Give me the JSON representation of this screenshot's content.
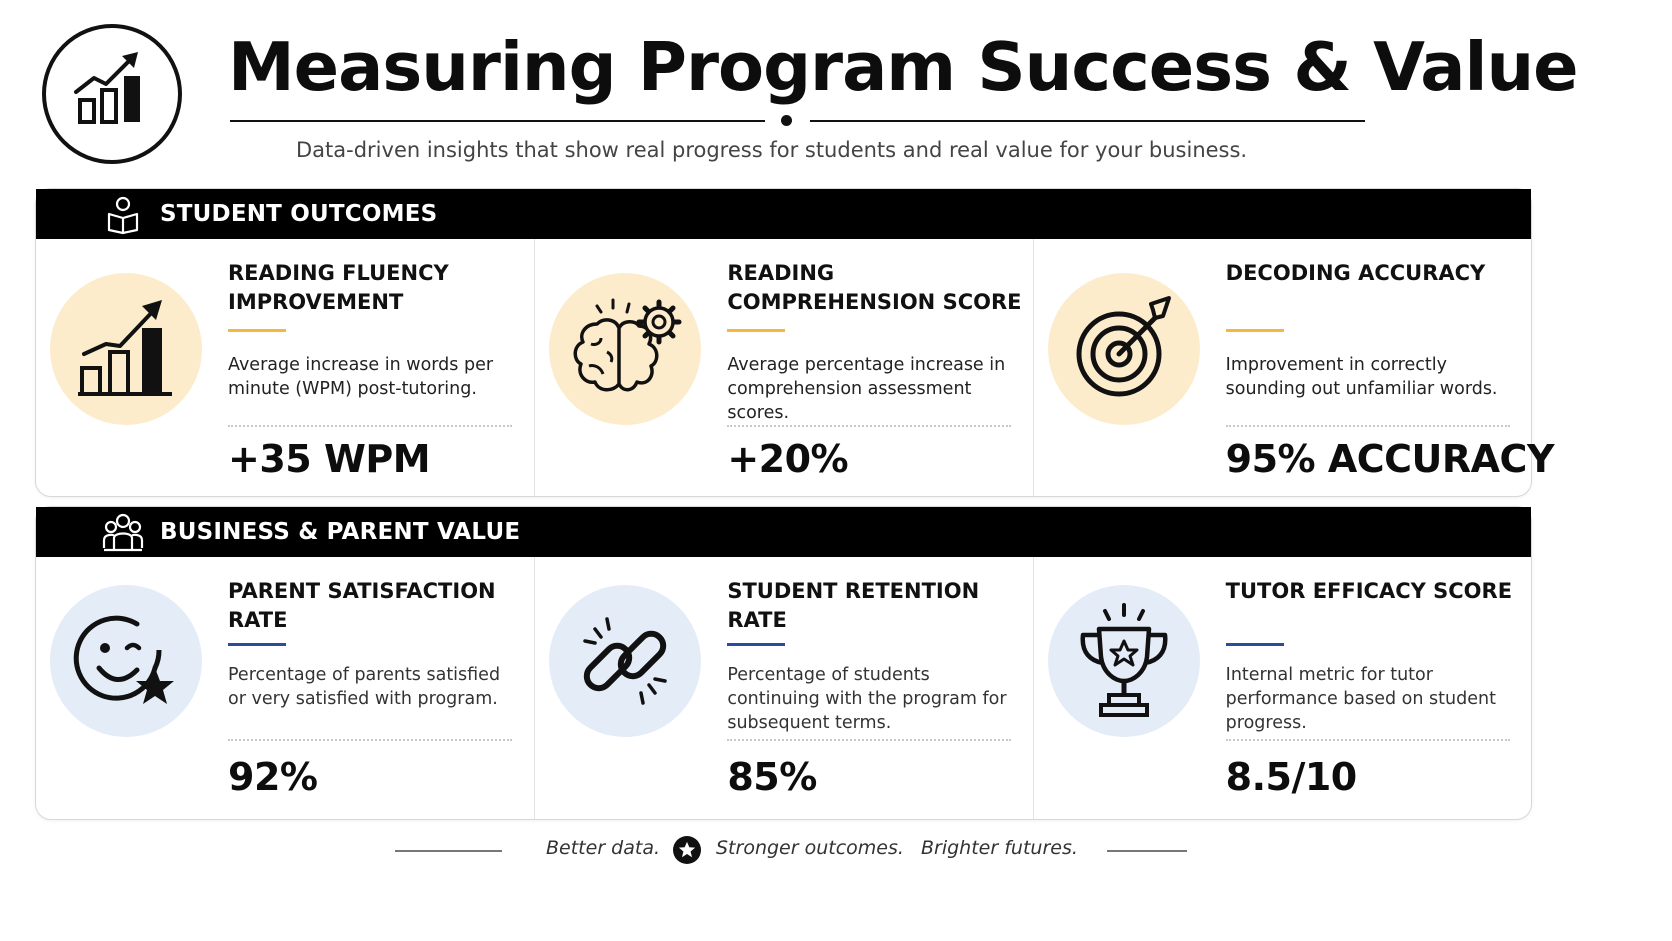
{
  "header": {
    "title": "Measuring Program Success & Value",
    "subtitle": "Data-driven insights that show real progress for students and real value for your business.",
    "logo_icon": "growth-chart-icon"
  },
  "sections": [
    {
      "title": "STUDENT OUTCOMES",
      "icon": "student-reading-icon",
      "bubble_color": "#fdeccc",
      "accent_color": "#f5b83c",
      "cards": [
        {
          "title": "READING FLUENCY IMPROVEMENT",
          "description": "Average increase in words per minute (WPM) post-tutoring.",
          "value": "+35 WPM",
          "icon": "growth-chart-icon"
        },
        {
          "title": "READING COMPREHENSION SCORE",
          "description": "Average percentage increase in comprehension assessment scores.",
          "value": "+20%",
          "icon": "brain-gear-icon"
        },
        {
          "title": "DECODING ACCURACY",
          "description": "Improvement in correctly sounding out unfamiliar words.",
          "value": "95% ACCURACY",
          "icon": "target-icon"
        }
      ]
    },
    {
      "title": "BUSINESS & PARENT VALUE",
      "icon": "group-icon",
      "bubble_color": "#e4ecf8",
      "accent_color": "#2a4c9a",
      "cards": [
        {
          "title": "PARENT SATISFACTION RATE",
          "description": "Percentage of parents satisfied or very satisfied with program.",
          "value": "92%",
          "icon": "smiley-star-icon"
        },
        {
          "title": "STUDENT RETENTION RATE",
          "description": "Percentage of students continuing with the program for subsequent terms.",
          "value": "85%",
          "icon": "chain-link-icon"
        },
        {
          "title": "TUTOR EFFICACY SCORE",
          "description": "Internal metric for tutor performance based on student progress.",
          "value": "8.5/10",
          "icon": "trophy-icon"
        }
      ]
    }
  ],
  "footer": {
    "left": "Better data.",
    "middle": "Stronger outcomes.",
    "right": "Brighter futures.",
    "icon": "star-icon"
  }
}
